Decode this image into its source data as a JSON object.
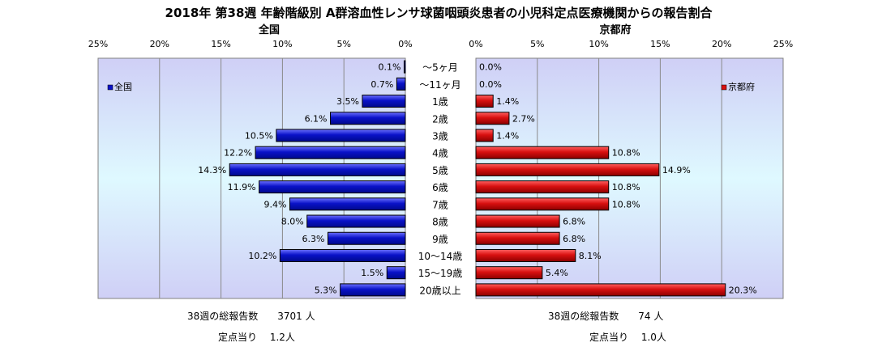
{
  "title": "2018年 第38週 年齢階級別 A群溶血性レンサ球菌咽頭炎患者の小児科定点医療機関からの報告割合",
  "chart_data": {
    "type": "bar",
    "categories": [
      "～5ヶ月",
      "～11ヶ月",
      "1歳",
      "2歳",
      "3歳",
      "4歳",
      "5歳",
      "6歳",
      "7歳",
      "8歳",
      "9歳",
      "10～14歳",
      "15～19歳",
      "20歳以上"
    ],
    "series": [
      {
        "name": "全国",
        "color": "#0a12c8",
        "values": [
          0.1,
          0.7,
          3.5,
          6.1,
          10.5,
          12.2,
          14.3,
          11.9,
          9.4,
          8.0,
          6.3,
          10.2,
          1.5,
          5.3
        ],
        "value_labels": [
          "0.1%",
          "0.7%",
          "3.5%",
          "6.1%",
          "10.5%",
          "12.2%",
          "14.3%",
          "11.9%",
          "9.4%",
          "8.0%",
          "6.3%",
          "10.2%",
          "1.5%",
          "5.3%"
        ]
      },
      {
        "name": "京都府",
        "color": "#d81010",
        "values": [
          0.0,
          0.0,
          1.4,
          2.7,
          1.4,
          10.8,
          14.9,
          10.8,
          10.8,
          6.8,
          6.8,
          8.1,
          5.4,
          20.3
        ],
        "value_labels": [
          "0.0%",
          "0.0%",
          "1.4%",
          "2.7%",
          "1.4%",
          "10.8%",
          "14.9%",
          "10.8%",
          "10.8%",
          "6.8%",
          "6.8%",
          "8.1%",
          "5.4%",
          "20.3%"
        ]
      }
    ],
    "panels": [
      {
        "title": "全国",
        "legend": "全国",
        "xlim": [
          0,
          25
        ],
        "direction": "reversed"
      },
      {
        "title": "京都府",
        "legend": "京都府",
        "xlim": [
          0,
          25
        ],
        "direction": "normal"
      }
    ],
    "ticks": [
      0,
      5,
      10,
      15,
      20,
      25
    ],
    "tick_labels": [
      "0%",
      "5%",
      "10%",
      "15%",
      "20%",
      "25%"
    ],
    "grid": true,
    "legend_position": "left of bars / right of bars"
  },
  "footer": {
    "national_total": "38週の総報告数　　3701 人",
    "national_per_site": "定点当り　 1.2人",
    "kyoto_total": "38週の総報告数　　74 人",
    "kyoto_per_site": "定点当り　 1.0人"
  }
}
